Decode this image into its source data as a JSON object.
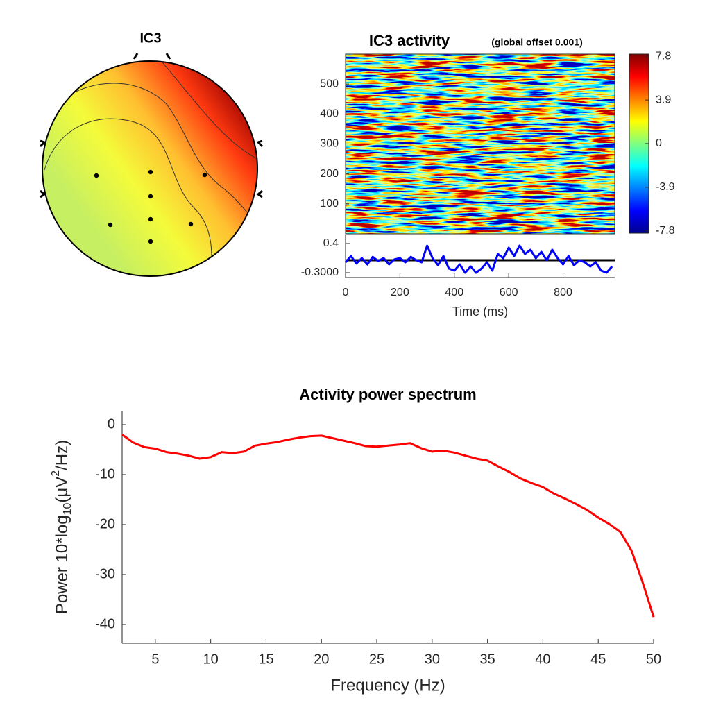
{
  "chart_data": [
    {
      "type": "topoplot",
      "title": "IC3"
    },
    {
      "type": "image",
      "title": "IC3 activity",
      "subtitle": "(global offset 0.001)",
      "ylim": [
        0,
        600
      ],
      "yticks": [
        100,
        200,
        300,
        400,
        500
      ],
      "colorbar": {
        "clim": [
          -8,
          8
        ],
        "ticks": [
          -7.8,
          -3.9,
          0,
          3.9,
          7.8
        ]
      }
    },
    {
      "type": "line",
      "x": [
        0,
        20,
        40,
        60,
        80,
        100,
        120,
        140,
        160,
        180,
        200,
        220,
        240,
        260,
        280,
        300,
        320,
        340,
        360,
        380,
        400,
        420,
        440,
        460,
        480,
        500,
        520,
        540,
        560,
        580,
        600,
        620,
        640,
        660,
        680,
        700,
        720,
        740,
        760,
        780,
        800,
        820,
        840,
        860,
        880,
        900,
        920,
        940,
        960,
        980
      ],
      "series": [
        {
          "color": "#0000ff",
          "values": [
            -0.05,
            0.1,
            -0.08,
            0.05,
            -0.1,
            0.08,
            -0.02,
            0.05,
            -0.1,
            0.02,
            0.05,
            -0.05,
            0.08,
            0.0,
            -0.05,
            0.35,
            0.05,
            -0.12,
            0.1,
            -0.2,
            -0.25,
            -0.1,
            -0.3,
            -0.15,
            -0.3,
            -0.2,
            -0.05,
            -0.25,
            0.15,
            0.05,
            0.3,
            0.1,
            0.35,
            0.15,
            0.25,
            0.05,
            0.2,
            0.0,
            0.25,
            0.05,
            -0.1,
            0.1,
            -0.12,
            0.0,
            -0.05,
            -0.15,
            -0.05,
            -0.25,
            -0.3,
            -0.15
          ]
        }
      ],
      "baseline": 0,
      "xlim": [
        0,
        990
      ],
      "xticks": [
        0,
        200,
        400,
        600,
        800
      ],
      "ylim": [
        -0.417,
        0.617
      ],
      "yticks": [
        {
          "value": -0.3,
          "label": "-0.3000"
        },
        0.4
      ],
      "xlabel": "Time (ms)"
    },
    {
      "type": "line",
      "title": "Activity power spectrum",
      "x": [
        2,
        3,
        4,
        5,
        6,
        7,
        8,
        9,
        10,
        11,
        12,
        13,
        14,
        15,
        16,
        17,
        18,
        19,
        20,
        21,
        22,
        23,
        24,
        25,
        26,
        27,
        28,
        29,
        30,
        31,
        32,
        33,
        34,
        35,
        36,
        37,
        38,
        39,
        40,
        41,
        42,
        43,
        44,
        45,
        46,
        47,
        48,
        49,
        50
      ],
      "series": [
        {
          "color": "#ff0000",
          "values": [
            -2.0,
            -3.6,
            -4.5,
            -4.8,
            -5.5,
            -5.8,
            -6.2,
            -6.8,
            -6.5,
            -5.5,
            -5.7,
            -5.4,
            -4.2,
            -3.8,
            -3.5,
            -3.0,
            -2.6,
            -2.3,
            -2.2,
            -2.7,
            -3.2,
            -3.7,
            -4.3,
            -4.4,
            -4.2,
            -4.0,
            -3.7,
            -4.7,
            -5.4,
            -5.2,
            -5.6,
            -6.2,
            -6.8,
            -7.2,
            -8.4,
            -9.5,
            -10.8,
            -11.7,
            -12.5,
            -13.8,
            -14.8,
            -15.9,
            -17.1,
            -18.6,
            -19.9,
            -21.5,
            -25.2,
            -31.5,
            -38.5
          ]
        }
      ],
      "xlim": [
        2,
        50
      ],
      "ylim": [
        -43.75,
        2.78
      ],
      "xticks": [
        5,
        10,
        15,
        20,
        25,
        30,
        35,
        40,
        45,
        50
      ],
      "yticks": [
        -40,
        -30,
        -20,
        -10,
        0
      ],
      "xlabel": "Frequency (Hz)",
      "ylabel": [
        "Power 10*log",
        "10",
        "(μV",
        "2",
        "/Hz)"
      ]
    }
  ]
}
